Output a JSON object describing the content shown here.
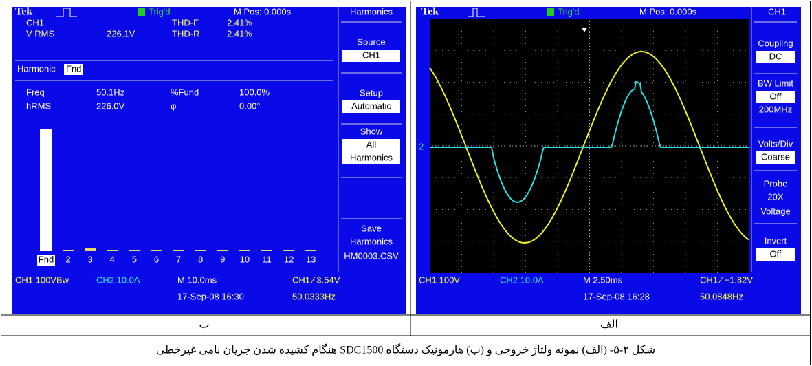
{
  "left_screen": {
    "header": {
      "brand": "Tek",
      "trigger": "Trig'd",
      "position": "M Pos: 0.000s",
      "menu_title": "Harmonics"
    },
    "readout": {
      "channel": "CH1",
      "vrms_label": "V RMS",
      "vrms_value": "226.1V",
      "thdf_label": "THD-F",
      "thdf_value": "2.41%",
      "thdr_label": "THD-R",
      "thdr_value": "2.41%",
      "harmonic_label": "Harmonic",
      "harmonic_value": "Fnd",
      "freq_label": "Freq",
      "freq_value": "50.1Hz",
      "fund_label": "%Fund",
      "fund_value": "100.0%",
      "hrms_label": "hRMS",
      "hrms_value": "226.0V",
      "phase_label": "φ",
      "phase_value": "0.00°"
    },
    "menu": [
      {
        "title": "Source",
        "value": [
          "CH1"
        ]
      },
      {
        "title": "Setup",
        "value": [
          "Automatic"
        ]
      },
      {
        "title": "Show",
        "value": [
          "All",
          "Harmonics"
        ]
      },
      {
        "title": "Save",
        "text": [
          "Harmonics",
          "HM0003.CSV"
        ]
      }
    ],
    "harmonics": {
      "categories": [
        "Fnd",
        "2",
        "3",
        "4",
        "5",
        "6",
        "7",
        "8",
        "9",
        "10",
        "11",
        "12",
        "13"
      ],
      "values": [
        100,
        1,
        2.4,
        1,
        1,
        1,
        1,
        1,
        1,
        1,
        1,
        1,
        1
      ]
    },
    "status": [
      "CH1 100VBw",
      "CH2 10.0A",
      "M 10.0ms",
      "CH1 ∕ 3.54V",
      "17-Sep-08 16:30",
      "50.0333Hz"
    ],
    "label": "ب"
  },
  "right_screen": {
    "header": {
      "brand": "Tek",
      "trigger": "Trig'd",
      "position": "M Pos: 0.000s",
      "menu_title": "CH1"
    },
    "ch2_marker": "2",
    "menu": [
      {
        "title": "Coupling",
        "value": [
          "DC"
        ]
      },
      {
        "title": "BW Limit",
        "value": [
          "Off"
        ],
        "text": [
          "200MHz"
        ]
      },
      {
        "title": "Volts/Div",
        "value": [
          "Coarse"
        ]
      },
      {
        "title": "Probe",
        "text": [
          "20X",
          "Voltage"
        ]
      },
      {
        "title": "Invert",
        "value": [
          "Off"
        ]
      }
    ],
    "status": [
      "CH1 100V",
      "CH2 10.0A",
      "M 2.50ms",
      "CH1 ∕ −1.82V",
      "17-Sep-08 16:28",
      "50.0848Hz"
    ],
    "label": "الف"
  },
  "caption": "شکل ۲-۵- (الف) نمونه ولتاژ خروجی و (ب) هارمونیک دستگاه SDC1500 هنگام کشیده شدن جریان نامی غیرخطی"
}
